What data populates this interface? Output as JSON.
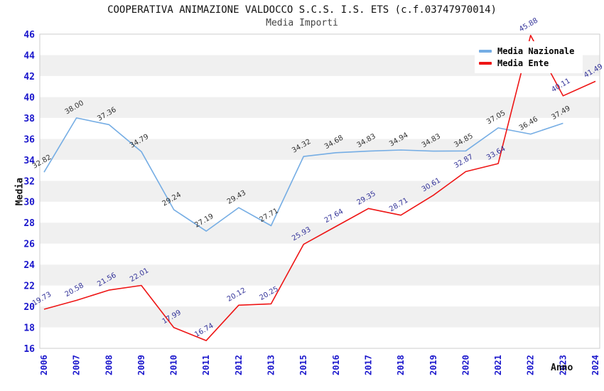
{
  "header": {
    "title": "COOPERATIVA ANIMAZIONE VALDOCCO S.C.S. I.S. ETS (c.f.03747970014)",
    "subtitle": "Media Importi"
  },
  "axes": {
    "y_title": "Media",
    "x_title": "Anno",
    "y_ticks": [
      "16",
      "18",
      "20",
      "22",
      "24",
      "26",
      "28",
      "30",
      "32",
      "34",
      "36",
      "38",
      "40",
      "42",
      "44",
      "46"
    ]
  },
  "legend": {
    "items": [
      {
        "label": "Media Nazionale",
        "color": "#75ade4"
      },
      {
        "label": "Media Ente",
        "color": "#ee1515"
      }
    ]
  },
  "colors": {
    "band_gray": "#f0f0f0",
    "band_white": "#ffffff",
    "plot_border": "#cccccc",
    "tick_label_blue": "#1a16cc",
    "national_line": "#75ade4",
    "ente_line": "#ee1515",
    "national_value_label": "#333333",
    "ente_value_label": "#333399"
  },
  "chart_data": {
    "type": "line",
    "title": "Media Importi",
    "xlabel": "Anno",
    "ylabel": "Media",
    "ylim": [
      16,
      46
    ],
    "y_step": 2,
    "grid": "alternating-bands",
    "legend_position": "top-right",
    "categories": [
      "2006",
      "2007",
      "2008",
      "2009",
      "2010",
      "2011",
      "2012",
      "2013",
      "2015",
      "2016",
      "2017",
      "2018",
      "2019",
      "2020",
      "2021",
      "2022",
      "2023",
      "2024"
    ],
    "series": [
      {
        "name": "Media Nazionale",
        "color": "#75ade4",
        "label_color": "#333333",
        "values": [
          "32.82",
          "38.00",
          "37.36",
          "34.79",
          "29.24",
          "27.19",
          "29.43",
          "27.71",
          "34.32",
          "34.68",
          "34.83",
          "34.94",
          "34.83",
          "34.85",
          "37.05",
          "36.46",
          "37.49",
          null
        ]
      },
      {
        "name": "Media Ente",
        "color": "#ee1515",
        "label_color": "#333399",
        "values": [
          "19.73",
          "20.58",
          "21.56",
          "22.01",
          "17.99",
          "16.74",
          "20.12",
          "20.25",
          "25.93",
          "27.64",
          "29.35",
          "28.71",
          "30.61",
          "32.87",
          "33.64",
          "45.88",
          "40.11",
          "41.49"
        ]
      }
    ]
  }
}
